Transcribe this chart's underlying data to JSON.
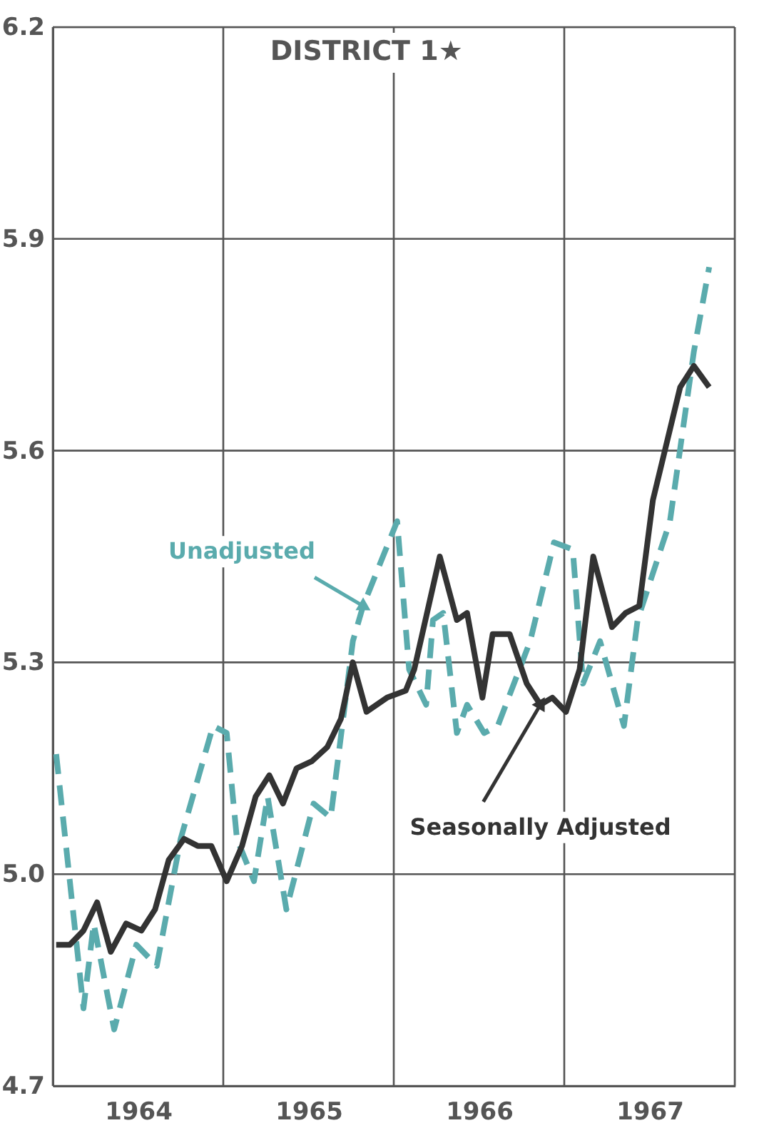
{
  "chart_data": {
    "type": "line",
    "title": "DISTRICT 1★",
    "xlim": [
      1964,
      1968
    ],
    "ylim": [
      4.7,
      6.2
    ],
    "xticks": [
      {
        "value": 1964,
        "label": null
      },
      {
        "value": 1964.5,
        "label": "1964"
      },
      {
        "value": 1965,
        "label": null
      },
      {
        "value": 1965.5,
        "label": "1965"
      },
      {
        "value": 1966,
        "label": null
      },
      {
        "value": 1966.5,
        "label": "1966"
      },
      {
        "value": 1967,
        "label": null
      },
      {
        "value": 1967.5,
        "label": "1967"
      },
      {
        "value": 1968,
        "label": null
      }
    ],
    "yticks": [
      {
        "value": 4.7,
        "label": "4.7"
      },
      {
        "value": 5.0,
        "label": "5.0"
      },
      {
        "value": 5.3,
        "label": "5.3"
      },
      {
        "value": 5.6,
        "label": "5.6"
      },
      {
        "value": 5.9,
        "label": "5.9"
      },
      {
        "value": 6.2,
        "label": "6.2"
      }
    ],
    "grid": true,
    "marker": "none",
    "series": [
      {
        "color": "#5aabad",
        "line_style": "dashed",
        "x": [
          1964.02,
          1964.18,
          1964.24,
          1964.36,
          1964.49,
          1964.61,
          1964.75,
          1964.94,
          1965.02,
          1965.08,
          1965.18,
          1965.26,
          1965.37,
          1965.53,
          1965.63,
          1965.76,
          1965.82,
          1966.02,
          1966.09,
          1966.19,
          1966.23,
          1966.29,
          1966.37,
          1966.43,
          1966.53,
          1966.61,
          1966.8,
          1966.94,
          1967.05,
          1967.11,
          1967.21,
          1967.35,
          1967.43,
          1967.62,
          1967.76,
          1967.85
        ],
        "values": [
          5.17,
          4.81,
          4.93,
          4.78,
          4.9,
          4.87,
          5.05,
          5.21,
          5.2,
          5.05,
          4.99,
          5.11,
          4.95,
          5.1,
          5.08,
          5.33,
          5.38,
          5.5,
          5.29,
          5.24,
          5.36,
          5.37,
          5.2,
          5.24,
          5.2,
          5.21,
          5.33,
          5.47,
          5.46,
          5.27,
          5.33,
          5.21,
          5.36,
          5.5,
          5.74,
          5.86
        ]
      },
      {
        "color": "#333333",
        "line_style": "solid",
        "x": [
          1964.02,
          1964.1,
          1964.18,
          1964.26,
          1964.34,
          1964.43,
          1964.52,
          1964.6,
          1964.68,
          1964.77,
          1964.85,
          1964.93,
          1965.02,
          1965.11,
          1965.19,
          1965.27,
          1965.35,
          1965.43,
          1965.52,
          1965.61,
          1965.69,
          1965.76,
          1965.84,
          1965.96,
          1966.07,
          1966.12,
          1966.27,
          1966.37,
          1966.43,
          1966.52,
          1966.58,
          1966.68,
          1966.78,
          1966.86,
          1966.93,
          1967.01,
          1967.09,
          1967.17,
          1967.28,
          1967.36,
          1967.44,
          1967.52,
          1967.68,
          1967.76,
          1967.85
        ],
        "values": [
          4.9,
          4.9,
          4.92,
          4.96,
          4.89,
          4.93,
          4.92,
          4.95,
          5.02,
          5.05,
          5.04,
          5.04,
          4.99,
          5.04,
          5.11,
          5.14,
          5.1,
          5.15,
          5.16,
          5.18,
          5.22,
          5.3,
          5.23,
          5.25,
          5.26,
          5.29,
          5.45,
          5.36,
          5.37,
          5.25,
          5.34,
          5.34,
          5.27,
          5.24,
          5.25,
          5.23,
          5.29,
          5.45,
          5.35,
          5.37,
          5.38,
          5.53,
          5.69,
          5.72,
          5.69
        ]
      }
    ],
    "annotations": [
      {
        "text": "Unadjusted",
        "x": 1965.82,
        "y": 5.38
      },
      {
        "text": "Seasonally Adjusted",
        "x": 1966.86,
        "y": 5.24
      }
    ]
  }
}
